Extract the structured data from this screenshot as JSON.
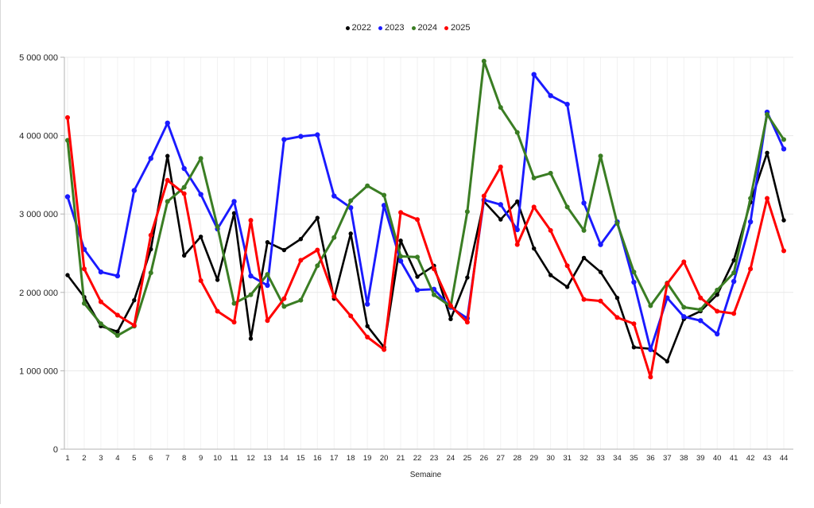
{
  "chart_data": {
    "type": "line",
    "title": "",
    "xlabel": "Semaine",
    "ylabel": "",
    "ylim": [
      0,
      5000000
    ],
    "grid": true,
    "legend_position": "top-center",
    "x": [
      1,
      2,
      3,
      4,
      5,
      6,
      7,
      8,
      9,
      10,
      11,
      12,
      13,
      14,
      15,
      16,
      17,
      18,
      19,
      20,
      21,
      22,
      23,
      24,
      25,
      26,
      27,
      28,
      29,
      30,
      31,
      32,
      33,
      34,
      35,
      36,
      37,
      38,
      39,
      40,
      41,
      42,
      43,
      44
    ],
    "y_tick_values": [
      0,
      1000000,
      2000000,
      3000000,
      4000000,
      5000000
    ],
    "y_tick_labels": [
      "0",
      "1 000 000",
      "2 000 000",
      "3 000 000",
      "4 000 000",
      "5 000 000"
    ],
    "colors": {
      "axis": "#b3b3b3",
      "grid_major": "#e8e8e8",
      "grid_minor_vertical": "#f2f2f2",
      "tick_text": "#232323"
    },
    "series": [
      {
        "name": "2022",
        "color": "#000000",
        "values": [
          2220000,
          1940000,
          1570000,
          1500000,
          1900000,
          2550000,
          3740000,
          2470000,
          2710000,
          2160000,
          3010000,
          1410000,
          2640000,
          2540000,
          2680000,
          2950000,
          1920000,
          2750000,
          1570000,
          1300000,
          2660000,
          2200000,
          2340000,
          1660000,
          2190000,
          3160000,
          2930000,
          3160000,
          2560000,
          2220000,
          2070000,
          2440000,
          2260000,
          1930000,
          1300000,
          1280000,
          1120000,
          1660000,
          1760000,
          1970000,
          2410000,
          3150000,
          3780000,
          2920000
        ]
      },
      {
        "name": "2023",
        "color": "#1a1aff",
        "values": [
          3220000,
          2550000,
          2260000,
          2210000,
          3300000,
          3710000,
          4160000,
          3580000,
          3250000,
          2810000,
          3160000,
          2210000,
          2090000,
          3950000,
          3990000,
          4010000,
          3230000,
          3080000,
          1850000,
          3110000,
          2400000,
          2030000,
          2040000,
          1810000,
          1670000,
          3180000,
          3120000,
          2800000,
          4780000,
          4510000,
          4400000,
          3140000,
          2610000,
          2900000,
          2130000,
          1270000,
          1930000,
          1690000,
          1640000,
          1470000,
          2140000,
          2900000,
          4300000,
          3830000
        ]
      },
      {
        "name": "2024",
        "color": "#3a7d23",
        "values": [
          3940000,
          1860000,
          1600000,
          1450000,
          1570000,
          2250000,
          3160000,
          3340000,
          3710000,
          2840000,
          1860000,
          1970000,
          2230000,
          1820000,
          1900000,
          2340000,
          2700000,
          3170000,
          3360000,
          3240000,
          2460000,
          2450000,
          1970000,
          1820000,
          3030000,
          4950000,
          4360000,
          4040000,
          3460000,
          3520000,
          3090000,
          2790000,
          3740000,
          2880000,
          2260000,
          1830000,
          2120000,
          1810000,
          1780000,
          2030000,
          2250000,
          3200000,
          4270000,
          3950000
        ]
      },
      {
        "name": "2025",
        "color": "#ff0000",
        "values": [
          4230000,
          2300000,
          1880000,
          1710000,
          1580000,
          2730000,
          3430000,
          3260000,
          2150000,
          1760000,
          1620000,
          2920000,
          1640000,
          1920000,
          2410000,
          2540000,
          1950000,
          1700000,
          1430000,
          1270000,
          3020000,
          2930000,
          2300000,
          1830000,
          1620000,
          3230000,
          3600000,
          2610000,
          3090000,
          2790000,
          2340000,
          1910000,
          1890000,
          1680000,
          1600000,
          920000,
          2110000,
          2390000,
          1930000,
          1760000,
          1730000,
          2300000,
          3200000,
          2530000
        ]
      }
    ]
  }
}
